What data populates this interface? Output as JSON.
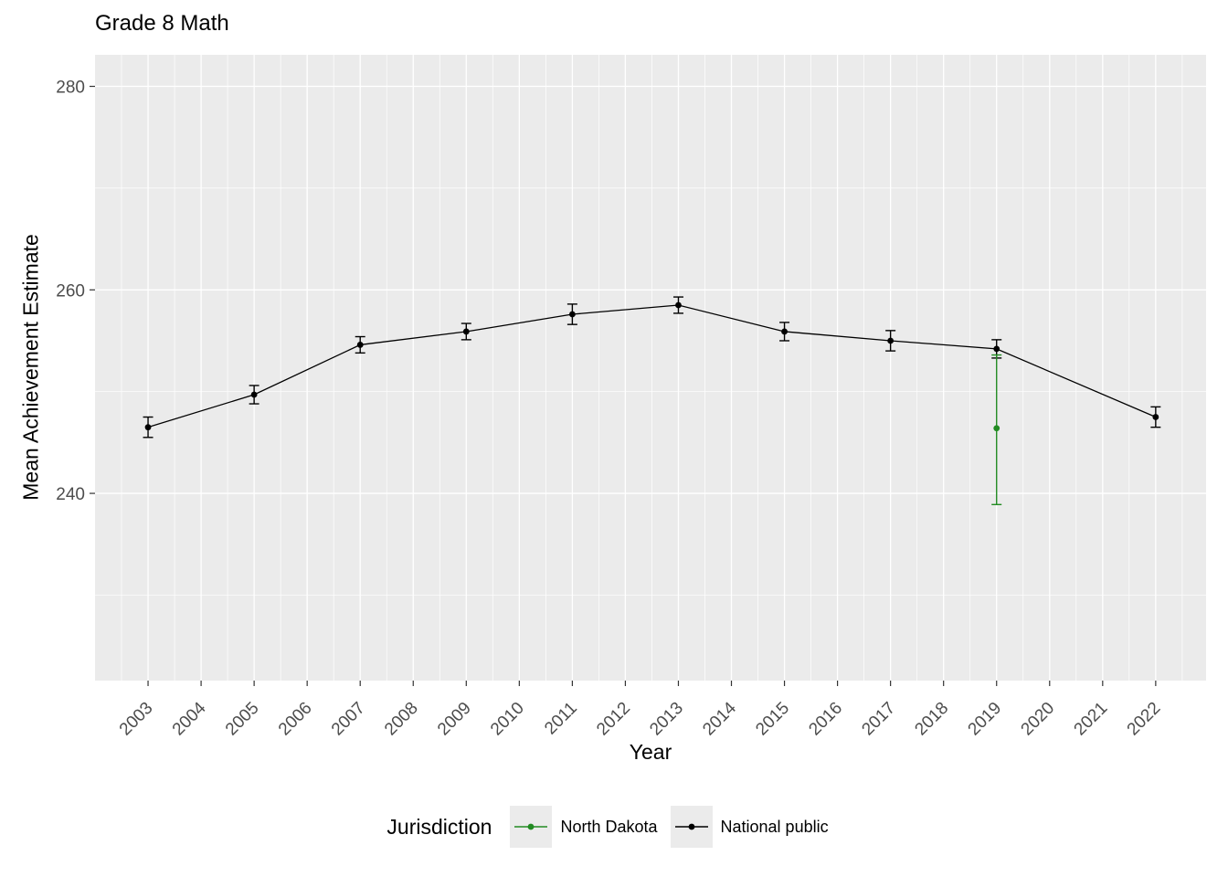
{
  "chart_data": {
    "type": "line",
    "title": "Grade 8 Math",
    "xlabel": "Year",
    "ylabel": "Mean Achievement Estimate",
    "legend_title": "Jurisdiction",
    "legend_position": "bottom",
    "grid": true,
    "xlim": [
      2002,
      2022.95
    ],
    "ylim": [
      221.6,
      283.1
    ],
    "x_ticks": [
      "2003",
      "2004",
      "2005",
      "2006",
      "2007",
      "2008",
      "2009",
      "2010",
      "2011",
      "2012",
      "2013",
      "2014",
      "2015",
      "2016",
      "2017",
      "2018",
      "2019",
      "2020",
      "2021",
      "2022"
    ],
    "y_ticks": [
      240,
      260,
      280
    ],
    "y_minor_ticks": [
      230,
      250,
      270
    ],
    "series": [
      {
        "name": "North Dakota",
        "color": "#228B22",
        "draw_line": false,
        "points": [
          {
            "x": 2019,
            "y": 246.4,
            "lo": 238.9,
            "hi": 253.6
          }
        ]
      },
      {
        "name": "National public",
        "color": "#000000",
        "draw_line": true,
        "points": [
          {
            "x": 2003,
            "y": 246.5,
            "lo": 245.5,
            "hi": 247.5
          },
          {
            "x": 2005,
            "y": 249.7,
            "lo": 248.8,
            "hi": 250.6
          },
          {
            "x": 2007,
            "y": 254.6,
            "lo": 253.8,
            "hi": 255.4
          },
          {
            "x": 2009,
            "y": 255.9,
            "lo": 255.1,
            "hi": 256.7
          },
          {
            "x": 2011,
            "y": 257.6,
            "lo": 256.6,
            "hi": 258.6
          },
          {
            "x": 2013,
            "y": 258.5,
            "lo": 257.7,
            "hi": 259.3
          },
          {
            "x": 2015,
            "y": 255.9,
            "lo": 255.0,
            "hi": 256.8
          },
          {
            "x": 2017,
            "y": 255.0,
            "lo": 254.0,
            "hi": 256.0
          },
          {
            "x": 2019,
            "y": 254.2,
            "lo": 253.3,
            "hi": 255.1
          },
          {
            "x": 2022,
            "y": 247.5,
            "lo": 246.5,
            "hi": 248.5
          }
        ]
      }
    ],
    "colors": {
      "panel_background": "#EBEBEB",
      "gridline": "#FFFFFF",
      "tick_label": "#4D4D4D",
      "tick_mark": "#333333"
    }
  }
}
